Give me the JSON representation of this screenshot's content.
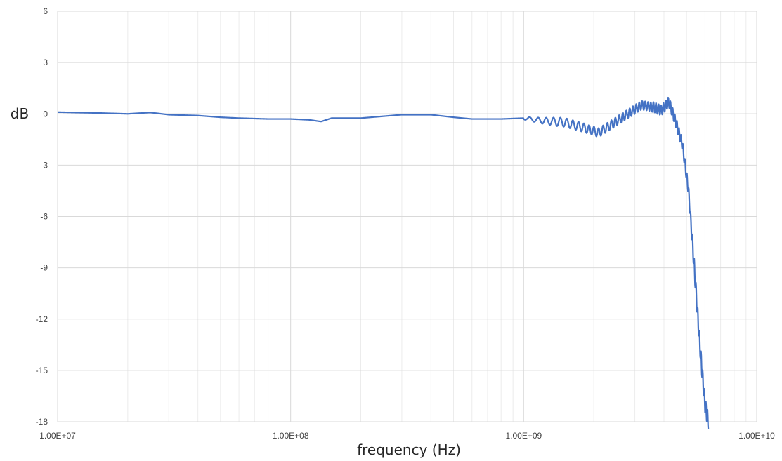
{
  "chart_data": {
    "type": "line",
    "x_scale": "log",
    "xlim": [
      10000000,
      10000000000
    ],
    "ylim": [
      -18,
      6
    ],
    "xlabel": "frequency  (Hz)",
    "ylabel": "dB",
    "x_tick_labels": [
      "1.00E+07",
      "1.00E+08",
      "1.00E+09",
      "1.00E+10"
    ],
    "y_tick_labels": [
      "6",
      "3",
      "0",
      "-3",
      "-6",
      "-9",
      "-12",
      "-15",
      "-18"
    ],
    "grid": true,
    "line_color": "#4472c4",
    "series": [
      {
        "x": [
          10000000,
          15000000,
          20000000,
          25000000,
          30000000,
          40000000,
          50000000,
          60000000,
          80000000,
          100000000,
          120000000,
          135000000,
          150000000,
          200000000,
          300000000,
          400000000,
          500000000,
          600000000,
          800000000,
          1000000000,
          1200000000,
          1500000000,
          1800000000,
          2100000000,
          2400000000,
          2800000000,
          3200000000,
          3600000000,
          3900000000,
          4200000000,
          4500000000,
          4800000000,
          5100000000,
          5400000000,
          5700000000,
          6000000000,
          6200000000
        ],
        "y": [
          0.1,
          0.05,
          0.0,
          0.08,
          -0.05,
          -0.1,
          -0.2,
          -0.25,
          -0.3,
          -0.3,
          -0.35,
          -0.45,
          -0.25,
          -0.25,
          -0.05,
          -0.05,
          -0.2,
          -0.3,
          -0.3,
          -0.25,
          -0.4,
          -0.5,
          -0.8,
          -1.1,
          -0.6,
          0.0,
          0.5,
          0.4,
          0.2,
          0.7,
          -0.5,
          -1.8,
          -4.5,
          -9.0,
          -13.5,
          -17.0,
          -18.0
        ]
      }
    ]
  }
}
